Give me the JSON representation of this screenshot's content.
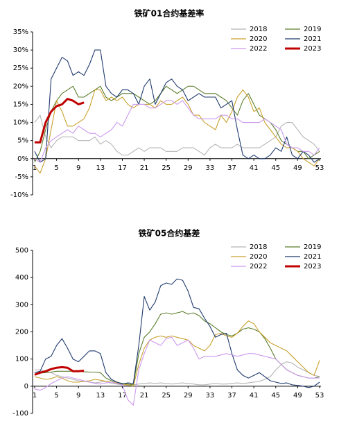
{
  "chart_data": [
    {
      "type": "line",
      "title": "铁矿01合约基差率",
      "x": [
        1,
        2,
        3,
        4,
        5,
        6,
        7,
        8,
        9,
        10,
        11,
        12,
        13,
        14,
        15,
        16,
        17,
        18,
        19,
        20,
        21,
        22,
        23,
        24,
        25,
        26,
        27,
        28,
        29,
        30,
        31,
        32,
        33,
        34,
        35,
        36,
        37,
        38,
        39,
        40,
        41,
        42,
        43,
        44,
        45,
        46,
        47,
        48,
        49,
        50,
        51,
        52,
        53
      ],
      "xlim": [
        1,
        53
      ],
      "xticks": [
        1,
        5,
        9,
        13,
        17,
        21,
        25,
        29,
        33,
        37,
        41,
        45,
        49,
        53
      ],
      "ylim": [
        -10,
        35
      ],
      "yticks": [
        {
          "value": -10,
          "label": "-10%"
        },
        {
          "value": -5,
          "label": "-5%"
        },
        {
          "value": 0,
          "label": "0%"
        },
        {
          "value": 5,
          "label": "5%"
        },
        {
          "value": 10,
          "label": "10%"
        },
        {
          "value": 15,
          "label": "15%"
        },
        {
          "value": 20,
          "label": "20%"
        },
        {
          "value": 25,
          "label": "25%"
        },
        {
          "value": 30,
          "label": "30%"
        },
        {
          "value": 35,
          "label": "35%"
        }
      ],
      "grid": false,
      "series": [
        {
          "name": "2018",
          "color": "#b4b4b4",
          "values": [
            10,
            12,
            6,
            3,
            5,
            6,
            6,
            6,
            5,
            5,
            5,
            6,
            4,
            5,
            4,
            2,
            1,
            1,
            2,
            3,
            2,
            3,
            3,
            3,
            2,
            2,
            2,
            3,
            3,
            3,
            2,
            1,
            3,
            4,
            3,
            3,
            3,
            4,
            3,
            3,
            3,
            3,
            4,
            5,
            6,
            9,
            10,
            10,
            8,
            6,
            5,
            4,
            2
          ]
        },
        {
          "name": "2019",
          "color": "#5b7d2b",
          "values": [
            -1,
            2,
            8,
            13,
            16,
            18,
            19,
            20,
            17,
            17,
            18,
            19,
            20,
            17,
            16,
            17,
            18,
            18,
            18,
            17,
            16,
            15,
            16,
            18,
            20,
            19,
            18,
            19,
            20,
            20,
            19,
            18,
            18,
            18,
            17,
            16,
            14,
            12,
            16,
            18,
            15,
            12,
            11,
            10,
            8,
            5,
            4,
            3,
            2,
            2,
            0,
            1,
            2
          ]
        },
        {
          "name": "2020",
          "color": "#c9a02e",
          "values": [
            -2,
            -4,
            0,
            8,
            16,
            13,
            9,
            9,
            10,
            11,
            14,
            19,
            19,
            16,
            17,
            16,
            17,
            15,
            14,
            15,
            15,
            15,
            14,
            16,
            15,
            15,
            16,
            17,
            15,
            12,
            12,
            10,
            9,
            8,
            12,
            10,
            13,
            17,
            19,
            17,
            13,
            14,
            10,
            8,
            6,
            4,
            3,
            3,
            2,
            0,
            -1,
            -2,
            0
          ]
        },
        {
          "name": "2021",
          "color": "#1f3a6e",
          "values": [
            2,
            -1,
            0,
            22,
            25,
            28,
            27,
            23,
            24,
            23,
            26,
            30,
            30,
            20,
            18,
            17,
            19,
            19,
            18,
            15,
            20,
            22,
            15,
            18,
            21,
            22,
            20,
            19,
            16,
            17,
            18,
            17,
            17,
            17,
            14,
            15,
            16,
            8,
            1,
            0,
            1,
            0,
            0,
            1,
            3,
            2,
            6,
            1,
            0,
            2,
            1,
            -1,
            0
          ]
        },
        {
          "name": "2022",
          "color": "#cc99ee",
          "values": [
            0,
            -1,
            3,
            5,
            6,
            7,
            8,
            7,
            9,
            8,
            7,
            7,
            6,
            7,
            8,
            10,
            9,
            12,
            15,
            15,
            15,
            14,
            14,
            15,
            16,
            16,
            15,
            16,
            14,
            12,
            11,
            11,
            11,
            11,
            12,
            12,
            11,
            11,
            10,
            10,
            10,
            10,
            11,
            10,
            9,
            8,
            4,
            3,
            3,
            2,
            2,
            1,
            3
          ]
        },
        {
          "name": "2023",
          "color": "#c00000",
          "width": 3,
          "values": [
            4.5,
            4.5,
            10,
            13,
            14.5,
            15,
            16.5,
            16,
            15,
            15.5,
            null,
            null,
            null,
            null,
            null,
            null,
            null,
            null,
            null,
            null,
            null,
            null,
            null,
            null,
            null,
            null,
            null,
            null,
            null,
            null,
            null,
            null,
            null,
            null,
            null,
            null,
            null,
            null,
            null,
            null,
            null,
            null,
            null,
            null,
            null,
            null,
            null,
            null,
            null,
            null,
            null,
            null,
            null
          ]
        }
      ]
    },
    {
      "type": "line",
      "title": "铁矿05合约基差",
      "x": [
        1,
        2,
        3,
        4,
        5,
        6,
        7,
        8,
        9,
        10,
        11,
        12,
        13,
        14,
        15,
        16,
        17,
        18,
        19,
        20,
        21,
        22,
        23,
        24,
        25,
        26,
        27,
        28,
        29,
        30,
        31,
        32,
        33,
        34,
        35,
        36,
        37,
        38,
        39,
        40,
        41,
        42,
        43,
        44,
        45,
        46,
        47,
        48,
        49,
        50,
        51,
        52,
        53
      ],
      "xlim": [
        1,
        53
      ],
      "xticks": [
        1,
        5,
        9,
        13,
        17,
        21,
        25,
        29,
        33,
        37,
        41,
        45,
        49,
        53
      ],
      "ylim": [
        -100,
        500
      ],
      "yticks": [
        -100,
        0,
        100,
        200,
        300,
        400,
        500
      ],
      "grid": false,
      "series": [
        {
          "name": "2018",
          "color": "#b4b4b4",
          "values": [
            60,
            60,
            55,
            50,
            40,
            35,
            30,
            25,
            20,
            18,
            15,
            12,
            15,
            18,
            10,
            8,
            5,
            3,
            5,
            8,
            10,
            12,
            10,
            12,
            10,
            8,
            10,
            12,
            10,
            8,
            5,
            5,
            8,
            10,
            8,
            8,
            10,
            12,
            10,
            12,
            15,
            18,
            25,
            35,
            60,
            80,
            90,
            85,
            70,
            60,
            50,
            40,
            35
          ]
        },
        {
          "name": "2019",
          "color": "#5b7d2b",
          "values": [
            45,
            48,
            50,
            52,
            55,
            55,
            55,
            55,
            55,
            53,
            52,
            52,
            50,
            30,
            20,
            15,
            10,
            8,
            5,
            120,
            180,
            200,
            230,
            265,
            270,
            265,
            270,
            275,
            265,
            270,
            260,
            240,
            230,
            215,
            200,
            190,
            185,
            195,
            210,
            215,
            210,
            200,
            175,
            140,
            100,
            80,
            60,
            50,
            40,
            35,
            30,
            30,
            35
          ]
        },
        {
          "name": "2020",
          "color": "#c9a02e",
          "values": [
            35,
            30,
            25,
            28,
            35,
            30,
            20,
            15,
            15,
            18,
            20,
            25,
            22,
            18,
            15,
            12,
            8,
            5,
            0,
            80,
            140,
            170,
            180,
            185,
            180,
            185,
            180,
            175,
            170,
            150,
            140,
            130,
            150,
            190,
            195,
            185,
            180,
            195,
            220,
            240,
            230,
            200,
            180,
            160,
            150,
            140,
            130,
            110,
            90,
            70,
            50,
            40,
            95
          ]
        },
        {
          "name": "2021",
          "color": "#1f3a6e",
          "values": [
            50,
            55,
            100,
            110,
            150,
            175,
            140,
            100,
            90,
            110,
            130,
            130,
            120,
            50,
            25,
            15,
            8,
            12,
            10,
            150,
            330,
            280,
            310,
            370,
            380,
            375,
            395,
            390,
            350,
            290,
            285,
            250,
            220,
            180,
            190,
            195,
            120,
            60,
            40,
            30,
            40,
            50,
            35,
            20,
            15,
            10,
            12,
            5,
            3,
            0,
            -5,
            0,
            15
          ]
        },
        {
          "name": "2022",
          "color": "#cc99ee",
          "values": [
            -10,
            -15,
            -5,
            10,
            20,
            30,
            35,
            30,
            25,
            20,
            15,
            10,
            8,
            12,
            15,
            10,
            5,
            -50,
            -70,
            60,
            120,
            170,
            160,
            150,
            175,
            180,
            150,
            160,
            170,
            140,
            100,
            110,
            110,
            110,
            115,
            120,
            115,
            110,
            115,
            120,
            120,
            115,
            110,
            105,
            100,
            80,
            60,
            50,
            40,
            35,
            30,
            30,
            30
          ]
        },
        {
          "name": "2023",
          "color": "#c00000",
          "width": 3,
          "values": [
            42,
            50,
            55,
            63,
            68,
            70,
            68,
            55,
            55,
            57,
            null,
            null,
            null,
            null,
            null,
            null,
            null,
            null,
            null,
            null,
            null,
            null,
            null,
            null,
            null,
            null,
            null,
            null,
            null,
            null,
            null,
            null,
            null,
            null,
            null,
            null,
            null,
            null,
            null,
            null,
            null,
            null,
            null,
            null,
            null,
            null,
            null,
            null,
            null,
            null,
            null,
            null,
            null
          ]
        }
      ]
    }
  ]
}
